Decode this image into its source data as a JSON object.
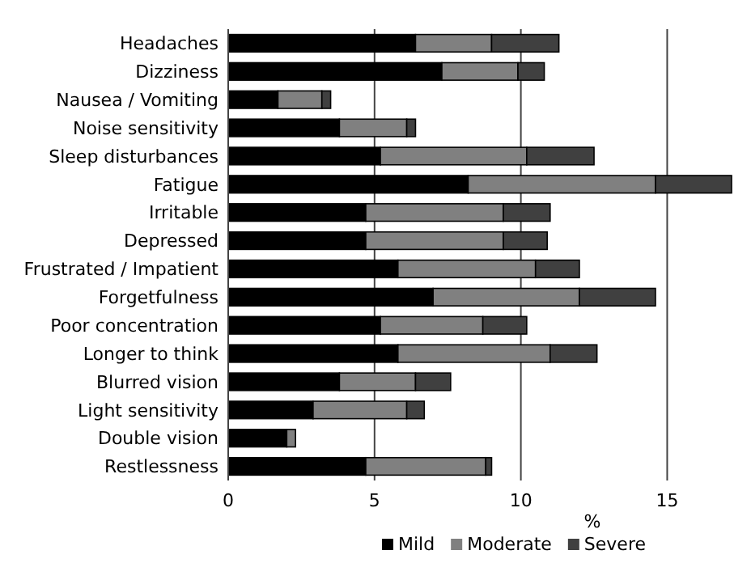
{
  "chart_data": {
    "type": "bar",
    "orientation": "horizontal",
    "stacked": true,
    "categories": [
      "Headaches",
      "Dizziness",
      "Nausea / Vomiting",
      "Noise sensitivity",
      "Sleep disturbances",
      "Fatigue",
      "Irritable",
      "Depressed",
      "Frustrated / Impatient",
      "Forgetfulness",
      "Poor concentration",
      "Longer to think",
      "Blurred vision",
      "Light sensitivity",
      "Double vision",
      "Restlessness"
    ],
    "series": [
      {
        "name": "Mild",
        "color": "#000000",
        "values": [
          6.4,
          7.3,
          1.7,
          3.8,
          5.2,
          8.2,
          4.7,
          4.7,
          5.8,
          7.0,
          5.2,
          5.8,
          3.8,
          2.9,
          2.0,
          4.7
        ]
      },
      {
        "name": "Moderate",
        "color": "#808080",
        "values": [
          2.6,
          2.6,
          1.5,
          2.3,
          5.0,
          6.4,
          4.7,
          4.7,
          4.7,
          5.0,
          3.5,
          5.2,
          2.6,
          3.2,
          0.3,
          4.1
        ]
      },
      {
        "name": "Severe",
        "color": "#404040",
        "values": [
          2.3,
          0.9,
          0.3,
          0.3,
          2.3,
          2.6,
          1.6,
          1.5,
          1.5,
          2.6,
          1.5,
          1.6,
          1.2,
          0.6,
          0,
          0.2
        ]
      }
    ],
    "xlabel": "%",
    "xlim": [
      0,
      17.2
    ],
    "xticks": [
      0,
      5,
      10,
      15
    ],
    "grid": "x",
    "legend": "bottom"
  }
}
